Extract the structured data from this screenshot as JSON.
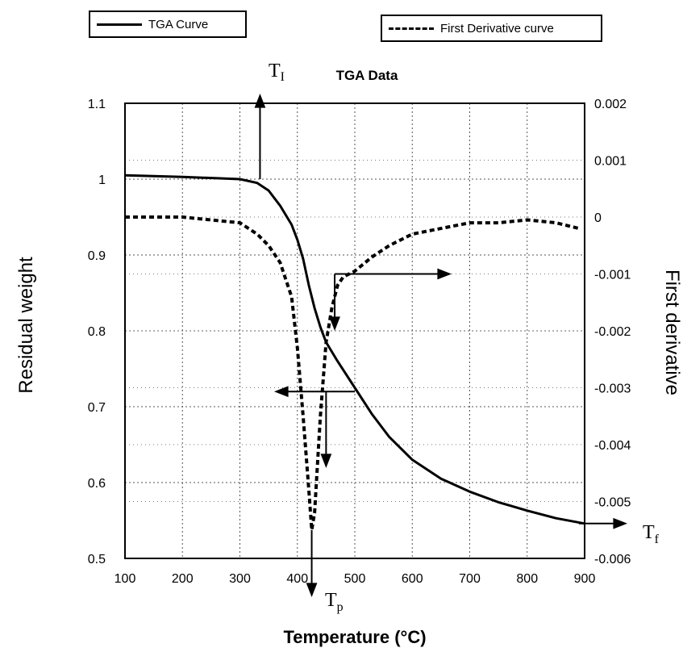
{
  "chart_data": {
    "type": "line",
    "title": "TGA Data",
    "xlabel": "Temperature (°C)",
    "ylabel_left": "Residual weight",
    "ylabel_right": "First derivative",
    "xlim": [
      100,
      900
    ],
    "ylim_left": [
      0.5,
      1.1
    ],
    "ylim_right": [
      -0.006,
      0.002
    ],
    "grid": true,
    "legend_placement": "top",
    "x_ticks": [
      "100",
      "200",
      "300",
      "400",
      "500",
      "600",
      "700",
      "800",
      "900"
    ],
    "y_left_ticks": [
      "0.5",
      "0.6",
      "0.7",
      "0.8",
      "0.9",
      "1",
      "1.1"
    ],
    "y_right_ticks": [
      "-0.006",
      "-0.005",
      "-0.004",
      "-0.003",
      "-0.002",
      "-0.001",
      "0",
      "0.001",
      "0.002"
    ],
    "series": [
      {
        "name": "TGA Curve",
        "axis": "left",
        "style": "solid",
        "x": [
          100,
          200,
          300,
          330,
          350,
          370,
          390,
          400,
          410,
          420,
          430,
          440,
          450,
          470,
          500,
          530,
          560,
          600,
          650,
          700,
          750,
          800,
          850,
          900
        ],
        "y": [
          1.005,
          1.003,
          1.0,
          0.995,
          0.985,
          0.965,
          0.94,
          0.92,
          0.895,
          0.86,
          0.83,
          0.805,
          0.785,
          0.76,
          0.725,
          0.69,
          0.66,
          0.63,
          0.605,
          0.588,
          0.574,
          0.563,
          0.553,
          0.546
        ]
      },
      {
        "name": "First Derivative curve",
        "axis": "right",
        "style": "dashed",
        "x": [
          100,
          200,
          300,
          330,
          350,
          370,
          380,
          390,
          400,
          410,
          420,
          425,
          430,
          440,
          450,
          460,
          470,
          480,
          500,
          530,
          560,
          600,
          650,
          700,
          750,
          800,
          850,
          890
        ],
        "y": [
          0.0,
          0.0,
          -0.0001,
          -0.0003,
          -0.0005,
          -0.0008,
          -0.0011,
          -0.0014,
          -0.0023,
          -0.0035,
          -0.0048,
          -0.0055,
          -0.0052,
          -0.0035,
          -0.0022,
          -0.0016,
          -0.0012,
          -0.00105,
          -0.00095,
          -0.0007,
          -0.0005,
          -0.0003,
          -0.0002,
          -0.0001,
          -0.0001,
          -5e-05,
          -0.0001,
          -0.0002
        ]
      }
    ],
    "annotations": {
      "t_i": "T",
      "t_i_sub": "I",
      "t_p": "T",
      "t_p_sub": "p",
      "t_f": "T",
      "t_f_sub": "f"
    }
  }
}
